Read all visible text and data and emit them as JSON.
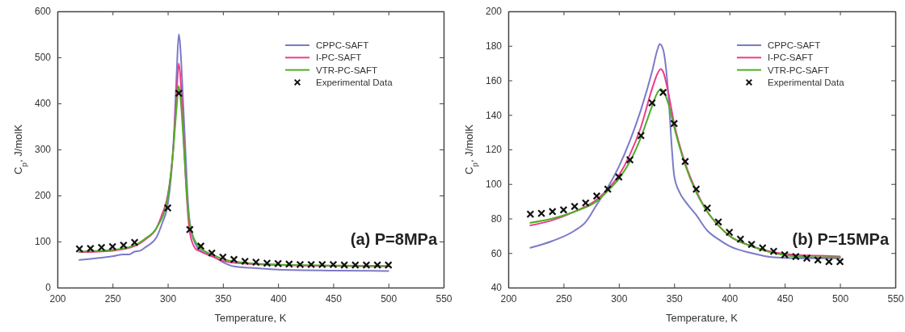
{
  "chart_data": [
    {
      "type": "line",
      "xlabel": "Temperature, K",
      "ylabel": "C$_{p}$, J/molK",
      "xlim": [
        200,
        550
      ],
      "xticks": [
        200,
        250,
        300,
        350,
        400,
        450,
        500,
        550
      ],
      "ylim": [
        0,
        600
      ],
      "yticks": [
        0,
        100,
        200,
        300,
        400,
        500,
        600
      ],
      "grid": false,
      "legend": "top right",
      "line_style": "solid",
      "annotations": [
        "(a) P=8MPa"
      ],
      "series": [
        {
          "name": "CPPC-SAFT",
          "type": "line",
          "color": "#7b7bc8",
          "x": [
            220,
            240,
            250,
            260,
            265,
            270,
            275,
            280,
            290,
            295,
            300,
            303,
            306,
            308,
            310,
            312,
            314,
            316,
            318,
            320,
            325,
            330,
            340,
            350,
            360,
            380,
            400,
            450,
            500
          ],
          "values": [
            60,
            65,
            68,
            72,
            72,
            78,
            80,
            88,
            110,
            140,
            180,
            240,
            350,
            460,
            550,
            500,
            400,
            300,
            200,
            140,
            95,
            80,
            70,
            55,
            46,
            42,
            39,
            37,
            36
          ]
        },
        {
          "name": "I-PC-SAFT",
          "type": "line",
          "color": "#ee3c8c",
          "x": [
            220,
            250,
            270,
            280,
            290,
            295,
            300,
            305,
            308,
            310,
            312,
            314,
            316,
            318,
            320,
            325,
            330,
            340,
            350,
            370,
            400,
            450,
            500
          ],
          "values": [
            77,
            80,
            90,
            105,
            130,
            160,
            200,
            300,
            420,
            487,
            440,
            350,
            250,
            170,
            120,
            85,
            78,
            68,
            58,
            52,
            49,
            47,
            46
          ]
        },
        {
          "name": "VTR-PC-SAFT",
          "type": "line",
          "color": "#4fae28",
          "x": [
            220,
            250,
            270,
            280,
            290,
            300,
            305,
            308,
            310,
            312,
            314,
            316,
            318,
            320,
            325,
            330,
            340,
            350,
            370,
            400,
            450,
            500
          ],
          "values": [
            78,
            82,
            92,
            107,
            130,
            195,
            300,
            390,
            438,
            400,
            330,
            250,
            180,
            140,
            100,
            85,
            72,
            62,
            54,
            50,
            48,
            47
          ]
        },
        {
          "name": "Experimental Data",
          "type": "scatter",
          "marker": "cross",
          "color": "#111111",
          "x": [
            220,
            230,
            240,
            250,
            260,
            270,
            300,
            310,
            320,
            330,
            340,
            350,
            360,
            370,
            380,
            390,
            400,
            410,
            420,
            430,
            440,
            450,
            460,
            470,
            480,
            490,
            500
          ],
          "values": [
            84,
            85,
            87,
            89,
            92,
            98,
            173,
            422,
            126,
            90,
            75,
            66,
            61,
            57,
            55,
            53,
            52,
            51,
            50,
            50,
            50,
            50,
            49,
            49,
            49,
            49,
            49
          ]
        }
      ]
    },
    {
      "type": "line",
      "xlabel": "Temperature, K",
      "ylabel": "C$_{p}$, J/molK",
      "xlim": [
        200,
        550
      ],
      "xticks": [
        200,
        250,
        300,
        350,
        400,
        450,
        500,
        550
      ],
      "ylim": [
        40,
        200
      ],
      "yticks": [
        40,
        60,
        80,
        100,
        120,
        140,
        160,
        180,
        200
      ],
      "grid": false,
      "legend": "top right",
      "line_style": "solid",
      "annotations": [
        "(b) P=15MPa"
      ],
      "series": [
        {
          "name": "CPPC-SAFT",
          "type": "line",
          "color": "#7b7bc8",
          "x": [
            220,
            240,
            260,
            270,
            280,
            290,
            300,
            310,
            320,
            330,
            335,
            337,
            340,
            345,
            348,
            350,
            355,
            360,
            370,
            380,
            390,
            400,
            420,
            440,
            460,
            480,
            500
          ],
          "values": [
            63,
            67,
            73,
            78,
            88,
            98,
            110,
            125,
            143,
            165,
            178,
            181,
            178,
            150,
            120,
            105,
            95,
            90,
            82,
            73,
            68,
            64,
            60,
            57.5,
            57,
            57,
            57
          ]
        },
        {
          "name": "I-PC-SAFT",
          "type": "line",
          "color": "#ee3c8c",
          "x": [
            220,
            240,
            260,
            280,
            290,
            300,
            310,
            320,
            330,
            335,
            338,
            340,
            345,
            350,
            360,
            370,
            380,
            390,
            400,
            420,
            440,
            460,
            480,
            500
          ],
          "values": [
            76,
            79,
            84,
            91,
            97,
            105,
            117,
            133,
            155,
            164,
            166.5,
            165,
            152,
            135,
            112,
            96,
            84,
            76,
            70,
            64,
            60.5,
            59,
            58.5,
            58
          ]
        },
        {
          "name": "VTR-PC-SAFT",
          "type": "line",
          "color": "#4fae28",
          "x": [
            220,
            240,
            260,
            280,
            290,
            300,
            310,
            320,
            330,
            335,
            338,
            340,
            345,
            350,
            360,
            370,
            380,
            390,
            400,
            420,
            440,
            460,
            480,
            500
          ],
          "values": [
            77.5,
            80,
            84,
            90,
            96,
            103,
            113,
            127,
            145,
            153,
            155,
            154,
            146,
            133,
            111,
            95,
            84,
            76,
            70,
            64,
            60,
            58,
            57.5,
            57.5
          ]
        },
        {
          "name": "Experimental Data",
          "type": "scatter",
          "marker": "cross",
          "color": "#111111",
          "x": [
            220,
            230,
            240,
            250,
            260,
            270,
            280,
            290,
            300,
            310,
            320,
            330,
            340,
            350,
            360,
            370,
            380,
            390,
            400,
            410,
            420,
            430,
            440,
            450,
            460,
            470,
            480,
            490,
            500
          ],
          "values": [
            82.5,
            83,
            84,
            85,
            87,
            89,
            93,
            97,
            104,
            114,
            128,
            147,
            153,
            135,
            113,
            97,
            86,
            78,
            72,
            68,
            65,
            63,
            61,
            59,
            58,
            57,
            56,
            55,
            55
          ]
        }
      ]
    }
  ]
}
